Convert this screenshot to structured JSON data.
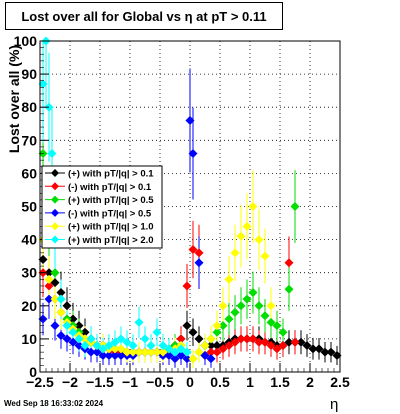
{
  "footer": {
    "timestamp": "Wed Sep 18 16:33:02 2024"
  },
  "chart_data": {
    "type": "scatter",
    "title": "Lost over all for Global vs    η at pT > 0.11",
    "xlabel": "η",
    "ylabel": "Lost over all (%)",
    "xlim": [
      -2.5,
      2.5
    ],
    "ylim": [
      0,
      100
    ],
    "xticks": [
      -2.5,
      -2,
      -1.5,
      -1,
      -0.5,
      0,
      0.5,
      1,
      1.5,
      2,
      2.5
    ],
    "xtick_labels": [
      "−2.5",
      "−2",
      "−1.5",
      "−1",
      "−0.5",
      "0",
      "0.5",
      "1",
      "1.5",
      "2",
      "2.5"
    ],
    "yticks": [
      0,
      10,
      20,
      30,
      40,
      50,
      60,
      70,
      80,
      90,
      100
    ],
    "ytick_labels": [
      "0",
      "10",
      "20",
      "30",
      "40",
      "50",
      "60",
      "70",
      "80",
      "90",
      "100"
    ],
    "grid": true,
    "legend_position": "upper-left",
    "series": [
      {
        "name": "(+) with pT/|q| > 0.1",
        "color": "#000000",
        "x": [
          -2.45,
          -2.35,
          -2.25,
          -2.15,
          -2.05,
          -1.95,
          -1.85,
          -1.75,
          -1.65,
          -1.55,
          -1.45,
          -1.35,
          -1.25,
          -1.15,
          -1.05,
          -0.95,
          -0.85,
          -0.75,
          -0.65,
          -0.55,
          -0.45,
          -0.35,
          -0.25,
          -0.15,
          -0.05,
          0.05,
          0.15,
          0.25,
          0.35,
          0.45,
          0.55,
          0.65,
          0.75,
          0.85,
          0.95,
          1.05,
          1.15,
          1.25,
          1.35,
          1.45,
          1.55,
          1.65,
          1.75,
          1.85,
          1.95,
          2.05,
          2.15,
          2.25,
          2.35,
          2.45
        ],
        "y": [
          34,
          30,
          27,
          24,
          20,
          16,
          14,
          12,
          10,
          8,
          8,
          7,
          7,
          6,
          6,
          6,
          6,
          6,
          6,
          6,
          6,
          7,
          8,
          10,
          14,
          12,
          10,
          8,
          8,
          8,
          8,
          9,
          10,
          10,
          10,
          10,
          10,
          9,
          9,
          8,
          8,
          9,
          9,
          9,
          8,
          7,
          7,
          6,
          6,
          5
        ]
      },
      {
        "name": "(-) with pT/|q| > 0.1",
        "color": "#ff0000",
        "x": [
          -2.45,
          -2.35,
          -2.25,
          -2.15,
          -2.05,
          -1.95,
          -1.85,
          -1.75,
          -1.65,
          -1.55,
          -1.45,
          -1.35,
          -1.25,
          -1.15,
          -1.05,
          -0.95,
          -0.85,
          -0.75,
          -0.65,
          -0.55,
          -0.45,
          -0.35,
          -0.25,
          -0.15,
          -0.05,
          0.05,
          0.15,
          0.25,
          0.35,
          0.45,
          0.55,
          0.65,
          0.75,
          0.85,
          0.95,
          1.05,
          1.15,
          1.25,
          1.35,
          1.45,
          1.55,
          1.65,
          1.75
        ],
        "y": [
          30,
          26,
          22,
          18,
          16,
          14,
          12,
          10,
          9,
          8,
          7,
          7,
          6,
          6,
          6,
          6,
          6,
          6,
          6,
          6,
          6,
          7,
          8,
          10,
          26,
          37,
          36,
          5,
          6,
          6,
          7,
          8,
          9,
          10,
          10,
          10,
          9,
          9,
          8,
          7,
          8,
          33,
          9
        ]
      },
      {
        "name": "(+) with pT/|q| > 0.5",
        "color": "#00dd00",
        "x": [
          -2.45,
          -2.35,
          -2.25,
          -2.15,
          -2.05,
          -1.95,
          -1.85,
          -1.75,
          -1.65,
          -1.55,
          -1.45,
          -1.35,
          -1.25,
          -1.15,
          -1.05,
          -0.95,
          -0.85,
          -0.75,
          -0.65,
          -0.55,
          -0.45,
          -0.35,
          -0.25,
          -0.15,
          -0.05,
          0.05,
          0.15,
          0.25,
          0.35,
          0.45,
          0.55,
          0.65,
          0.75,
          0.85,
          0.95,
          1.05,
          1.15,
          1.25,
          1.35,
          1.45,
          1.55,
          1.65,
          1.75,
          1.85
        ],
        "y": [
          66,
          40,
          30,
          22,
          16,
          14,
          12,
          10,
          9,
          8,
          8,
          7,
          7,
          7,
          6,
          6,
          6,
          6,
          6,
          6,
          6,
          7,
          8,
          8,
          6,
          4,
          6,
          8,
          10,
          12,
          14,
          16,
          18,
          20,
          22,
          24,
          20,
          17,
          15,
          14,
          12,
          25,
          50,
          null
        ]
      },
      {
        "name": "(-) with pT/|q| > 0.5",
        "color": "#0000ff",
        "x": [
          -2.45,
          -2.35,
          -2.25,
          -2.15,
          -2.05,
          -1.95,
          -1.85,
          -1.75,
          -1.65,
          -1.55,
          -1.45,
          -1.35,
          -1.25,
          -1.15,
          -1.05,
          -0.95,
          -0.85,
          -0.75,
          -0.65,
          -0.55,
          -0.45,
          -0.35,
          -0.25,
          -0.15,
          -0.05,
          0.0,
          0.05,
          0.15,
          0.25,
          0.35
        ],
        "y": [
          16,
          22,
          14,
          11,
          10,
          9,
          8,
          7,
          6,
          6,
          5,
          5,
          5,
          5,
          5,
          5,
          6,
          6,
          6,
          6,
          5,
          5,
          4,
          5,
          4,
          76,
          66,
          33,
          5,
          4
        ]
      },
      {
        "name": "(+) with pT/|q| > 1.0",
        "color": "#ffff00",
        "x": [
          -2.45,
          -2.35,
          -2.25,
          -2.15,
          -2.05,
          -1.95,
          -1.85,
          -1.75,
          -1.65,
          -1.55,
          -1.45,
          -1.35,
          -1.25,
          -1.15,
          -1.05,
          -0.95,
          -0.85,
          -0.75,
          -0.65,
          -0.55,
          -0.45,
          -0.35,
          -0.25,
          -0.15,
          -0.05,
          0.05,
          0.15,
          0.25,
          0.35,
          0.45,
          0.55,
          0.65,
          0.75,
          0.85,
          0.95,
          1.05,
          1.15,
          1.25,
          1.35
        ],
        "y": [
          40,
          28,
          22,
          18,
          15,
          13,
          11,
          10,
          9,
          8,
          8,
          7,
          7,
          7,
          6,
          6,
          6,
          6,
          6,
          6,
          6,
          7,
          7,
          8,
          6,
          4,
          6,
          8,
          10,
          14,
          20,
          28,
          36,
          41,
          44,
          50,
          40,
          35,
          20
        ]
      },
      {
        "name": "(+) with pT/|q| > 2.0",
        "color": "#00ffff",
        "x": [
          -2.45,
          -2.4,
          -2.35,
          -2.3,
          -2.25,
          -2.15,
          -2.05,
          -1.95,
          -1.85,
          -1.75,
          -1.65,
          -1.55,
          -1.45,
          -1.35,
          -1.25,
          -1.15,
          -1.05,
          -0.95,
          -0.85,
          -0.75,
          -0.65,
          -0.55,
          -0.45,
          -0.35,
          -0.25,
          -0.15,
          -0.05
        ],
        "y": [
          87,
          100,
          80,
          66,
          40,
          22,
          14,
          12,
          10,
          8,
          10,
          8,
          7,
          8,
          9,
          10,
          9,
          8,
          15,
          10,
          8,
          12,
          8,
          7,
          6,
          7,
          6
        ]
      }
    ]
  }
}
